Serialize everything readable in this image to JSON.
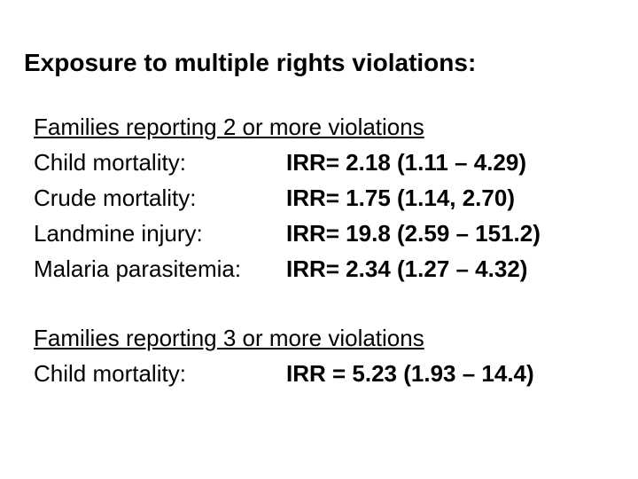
{
  "slide": {
    "title": "Exposure to multiple rights violations:",
    "colors": {
      "background": "#ffffff",
      "text": "#000000"
    },
    "sections": [
      {
        "heading": "Families reporting 2 or more violations",
        "rows": [
          {
            "label": "Child mortality:",
            "value": "IRR= 2.18 (1.11 – 4.29)"
          },
          {
            "label": "Crude mortality:",
            "value": "IRR= 1.75 (1.14, 2.70)"
          },
          {
            "label": "Landmine injury:",
            "value": "IRR= 19.8 (2.59 – 151.2)"
          },
          {
            "label": "Malaria parasitemia:",
            "value": "IRR= 2.34 (1.27 – 4.32)"
          }
        ]
      },
      {
        "heading": "Families reporting 3 or more violations",
        "rows": [
          {
            "label": "Child mortality:",
            "value": "IRR = 5.23 (1.93 – 14.4)"
          }
        ]
      }
    ]
  }
}
